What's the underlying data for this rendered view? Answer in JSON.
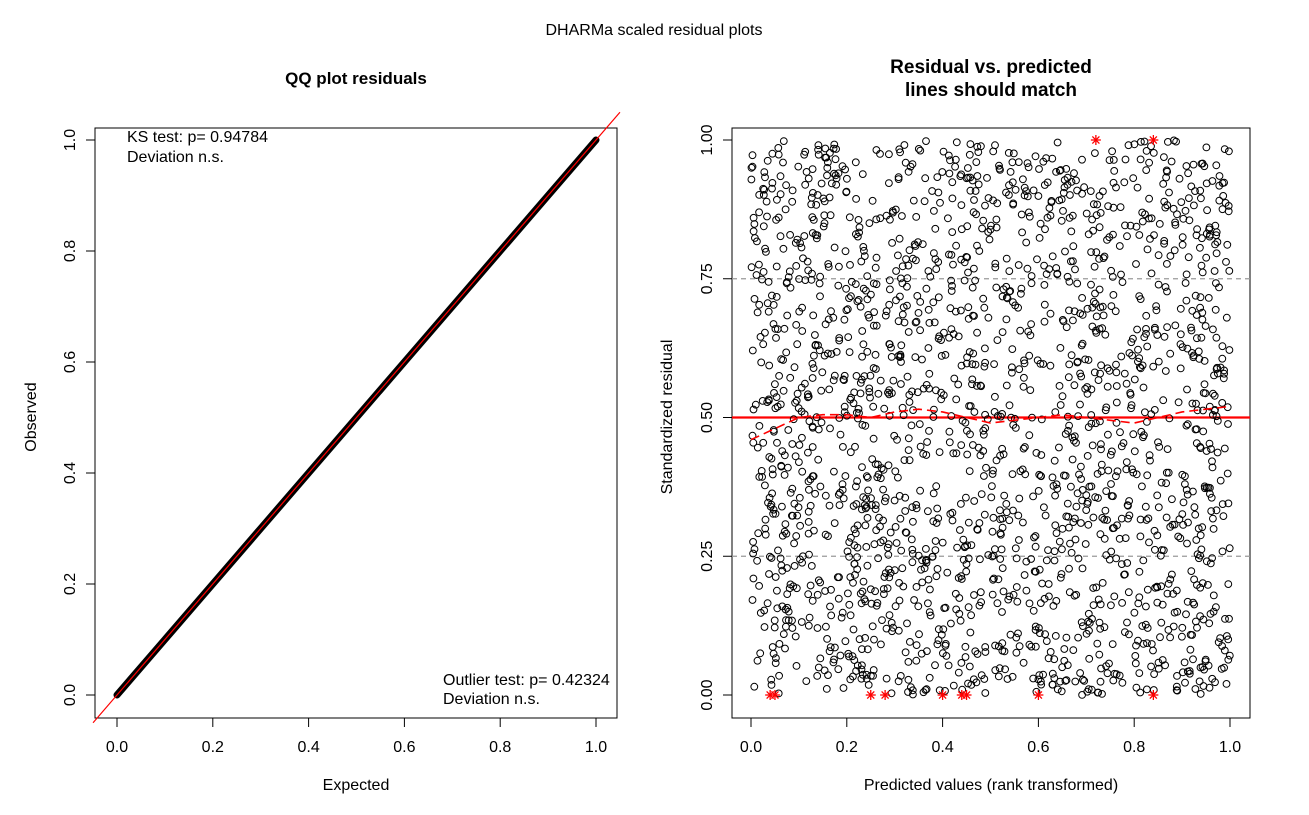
{
  "figure": {
    "title": "DHARMa scaled residual plots"
  },
  "chart_data": [
    {
      "type": "scatter",
      "title": "QQ plot residuals",
      "xlabel": "Expected",
      "ylabel": "Observed",
      "xlim": [
        0,
        1
      ],
      "ylim": [
        0,
        1
      ],
      "x_ticks": [
        "0.0",
        "0.2",
        "0.4",
        "0.6",
        "0.8",
        "1.0"
      ],
      "y_ticks": [
        "0.0",
        "0.2",
        "0.4",
        "0.6",
        "0.8",
        "1.0"
      ],
      "annotations": {
        "ks_test": "KS test: p= 0.94784",
        "ks_deviation": "Deviation  n.s.",
        "outlier_test": "Outlier test: p= 0.42324",
        "outlier_deviation": "Deviation  n.s."
      },
      "series": [
        {
          "kind": "points",
          "color": "#000000",
          "x": [
            0.0,
            0.1,
            0.2,
            0.3,
            0.4,
            0.5,
            0.6,
            0.7,
            0.8,
            0.9,
            1.0
          ],
          "y": [
            0.0,
            0.1,
            0.2,
            0.3,
            0.4,
            0.5,
            0.6,
            0.7,
            0.8,
            0.9,
            1.0
          ]
        },
        {
          "kind": "reference-line",
          "color": "#ff0000",
          "x": [
            0,
            1
          ],
          "y": [
            0,
            1
          ]
        }
      ],
      "grid": false
    },
    {
      "type": "scatter",
      "title": "Residual vs. predicted",
      "subtitle": "lines should match",
      "xlabel": "Predicted values (rank transformed)",
      "ylabel": "Standardized residual",
      "xlim": [
        0,
        1
      ],
      "ylim": [
        0,
        1
      ],
      "x_ticks": [
        "0.0",
        "0.2",
        "0.4",
        "0.6",
        "0.8",
        "1.0"
      ],
      "y_ticks": [
        "0.00",
        "0.25",
        "0.50",
        "0.75",
        "1.00"
      ],
      "reference_lines": {
        "solid_red_y": 0.5,
        "dashed_grey_y": [
          0.25,
          0.75
        ],
        "color_red": "#ff0000",
        "color_grey": "#999999"
      },
      "outliers": {
        "color": "#ff0000",
        "marker": "asterisk",
        "top": [
          0.72,
          0.84
        ],
        "bottom": [
          0.04,
          0.05,
          0.25,
          0.28,
          0.4,
          0.44,
          0.45,
          0.6,
          0.84
        ]
      },
      "quantile_curves": [
        {
          "quantile": 0.5,
          "color": "#ff0000",
          "x": [
            0.0,
            0.05,
            0.1,
            0.15,
            0.2,
            0.25,
            0.3,
            0.35,
            0.4,
            0.45,
            0.5,
            0.55,
            0.6,
            0.65,
            0.7,
            0.75,
            0.8,
            0.85,
            0.9,
            0.95,
            1.0
          ],
          "y": [
            0.46,
            0.48,
            0.5,
            0.505,
            0.505,
            0.5,
            0.51,
            0.515,
            0.51,
            0.5,
            0.49,
            0.495,
            0.5,
            0.505,
            0.5,
            0.495,
            0.49,
            0.5,
            0.51,
            0.515,
            0.52
          ]
        }
      ],
      "points": {
        "n": 2000,
        "marker": "open-circle",
        "color": "#000000",
        "distribution": "uniform"
      },
      "grid": false
    }
  ]
}
